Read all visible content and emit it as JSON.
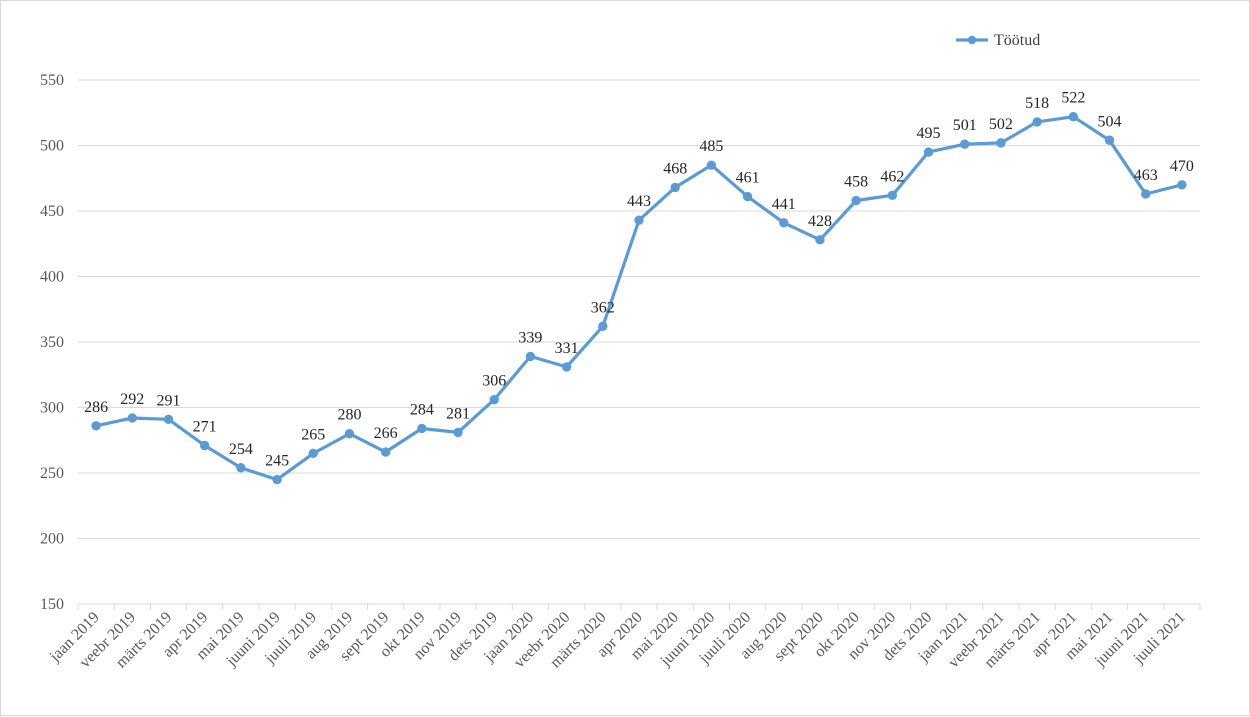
{
  "chart_data": {
    "type": "line",
    "title": "",
    "xlabel": "",
    "ylabel": "",
    "ylim": [
      150,
      550
    ],
    "yticks": [
      150,
      200,
      250,
      300,
      350,
      400,
      450,
      500,
      550
    ],
    "grid": true,
    "legend_position": "top-right",
    "categories": [
      "jaan 2019",
      "veebr 2019",
      "märts 2019",
      "apr 2019",
      "mai 2019",
      "juuni 2019",
      "juuli 2019",
      "aug 2019",
      "sept 2019",
      "okt 2019",
      "nov 2019",
      "dets 2019",
      "jaan 2020",
      "veebr 2020",
      "märts 2020",
      "apr 2020",
      "mai 2020",
      "juuni 2020",
      "juuli 2020",
      "aug 2020",
      "sept 2020",
      "okt 2020",
      "nov 2020",
      "dets 2020",
      "jaan 2021",
      "veebr 2021",
      "märts 2021",
      "apr 2021",
      "mai 2021",
      "juuni 2021",
      "juuli 2021"
    ],
    "series": [
      {
        "name": "Töötud",
        "color": "#5b9bd5",
        "values": [
          286,
          292,
          291,
          271,
          254,
          245,
          265,
          280,
          266,
          284,
          281,
          306,
          339,
          331,
          362,
          443,
          468,
          485,
          461,
          441,
          428,
          458,
          462,
          495,
          501,
          502,
          518,
          522,
          504,
          463,
          470
        ]
      }
    ]
  }
}
